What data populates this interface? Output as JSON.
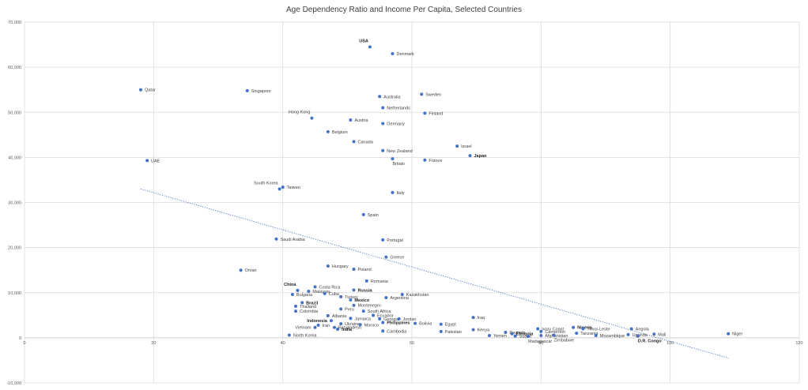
{
  "chart_data": {
    "type": "scatter",
    "title": "Age Dependency Ratio and Income Per Capita, Selected Countries",
    "xlabel": "",
    "ylabel": "",
    "xlim": [
      0,
      120
    ],
    "ylim": [
      -10000,
      70000
    ],
    "x_ticks": [
      "0",
      "20",
      "40",
      "60",
      "80",
      "100",
      "120"
    ],
    "y_ticks": [
      "-10,000",
      "0",
      "10,000",
      "20,000",
      "30,000",
      "40,000",
      "50,000",
      "60,000",
      "70,000"
    ],
    "grid": true,
    "legend": "none",
    "colors": {
      "marker": "#4472C4",
      "trendline": "#4472C4",
      "grid": "#d9d9d9",
      "axis": "#bfbfbf"
    },
    "trendline": {
      "type": "linear",
      "style": "dotted",
      "x": [
        18,
        109
      ],
      "y": [
        33000,
        -4500
      ]
    },
    "points": [
      {
        "name": "USA",
        "x": 53.5,
        "y": 64500,
        "bold": true
      },
      {
        "name": "Denmark",
        "x": 57,
        "y": 63000,
        "bold": false
      },
      {
        "name": "Qatar",
        "x": 18,
        "y": 55000,
        "bold": false
      },
      {
        "name": "Singapore",
        "x": 34.5,
        "y": 54800,
        "bold": false
      },
      {
        "name": "Sweden",
        "x": 61.5,
        "y": 54000,
        "bold": false
      },
      {
        "name": "Australia",
        "x": 55,
        "y": 53500,
        "bold": false
      },
      {
        "name": "Netherlands",
        "x": 55.5,
        "y": 51000,
        "bold": false
      },
      {
        "name": "Finland",
        "x": 62,
        "y": 49800,
        "bold": false
      },
      {
        "name": "Hong Kong",
        "x": 44.5,
        "y": 48700,
        "bold": false
      },
      {
        "name": "Austria",
        "x": 50.5,
        "y": 48300,
        "bold": false
      },
      {
        "name": "Germany",
        "x": 55.5,
        "y": 47500,
        "bold": false
      },
      {
        "name": "Belgium",
        "x": 47,
        "y": 45700,
        "bold": false
      },
      {
        "name": "Canada",
        "x": 51,
        "y": 43500,
        "bold": false
      },
      {
        "name": "Israel",
        "x": 67,
        "y": 42500,
        "bold": false
      },
      {
        "name": "New Zealand",
        "x": 55.5,
        "y": 41500,
        "bold": false
      },
      {
        "name": "Japan",
        "x": 69,
        "y": 40400,
        "bold": true
      },
      {
        "name": "Britain",
        "x": 57,
        "y": 39700,
        "bold": false
      },
      {
        "name": "France",
        "x": 62,
        "y": 39400,
        "bold": false
      },
      {
        "name": "UAE",
        "x": 19,
        "y": 39300,
        "bold": false
      },
      {
        "name": "South Korea",
        "x": 39.5,
        "y": 33000,
        "bold": false
      },
      {
        "name": "Taiwan",
        "x": 40,
        "y": 33400,
        "bold": false
      },
      {
        "name": "Italy",
        "x": 57,
        "y": 32200,
        "bold": false
      },
      {
        "name": "Spain",
        "x": 52.5,
        "y": 27300,
        "bold": false
      },
      {
        "name": "Saudi Arabia",
        "x": 39,
        "y": 21900,
        "bold": false
      },
      {
        "name": "Portugal",
        "x": 55.5,
        "y": 21700,
        "bold": false
      },
      {
        "name": "Greece",
        "x": 56,
        "y": 17900,
        "bold": false
      },
      {
        "name": "Hungary",
        "x": 47,
        "y": 15900,
        "bold": false
      },
      {
        "name": "Oman",
        "x": 33.5,
        "y": 15000,
        "bold": false
      },
      {
        "name": "Poland",
        "x": 51,
        "y": 15200,
        "bold": false
      },
      {
        "name": "Romania",
        "x": 53,
        "y": 12600,
        "bold": false
      },
      {
        "name": "China",
        "x": 42.3,
        "y": 10500,
        "bold": true
      },
      {
        "name": "Costa Rica",
        "x": 45,
        "y": 11300,
        "bold": false
      },
      {
        "name": "Malaysia",
        "x": 44,
        "y": 10300,
        "bold": false
      },
      {
        "name": "Russia",
        "x": 51,
        "y": 10600,
        "bold": true
      },
      {
        "name": "Bulgaria",
        "x": 41.5,
        "y": 9600,
        "bold": false
      },
      {
        "name": "Cuba",
        "x": 46.5,
        "y": 9800,
        "bold": false
      },
      {
        "name": "Kazakhstan",
        "x": 58.5,
        "y": 9600,
        "bold": false
      },
      {
        "name": "Turkey",
        "x": 49,
        "y": 9100,
        "bold": false
      },
      {
        "name": "Argentina",
        "x": 56,
        "y": 8900,
        "bold": false
      },
      {
        "name": "Mexico",
        "x": 50.5,
        "y": 8400,
        "bold": true
      },
      {
        "name": "Brazil",
        "x": 43,
        "y": 7800,
        "bold": true
      },
      {
        "name": "Montenegro",
        "x": 51,
        "y": 7200,
        "bold": false
      },
      {
        "name": "Thailand",
        "x": 42,
        "y": 7000,
        "bold": false
      },
      {
        "name": "Peru",
        "x": 49,
        "y": 6400,
        "bold": false
      },
      {
        "name": "Colombia",
        "x": 42,
        "y": 5900,
        "bold": false
      },
      {
        "name": "South Africa",
        "x": 52.5,
        "y": 5900,
        "bold": false
      },
      {
        "name": "Albania",
        "x": 47,
        "y": 4900,
        "bold": false
      },
      {
        "name": "Ecuador",
        "x": 54,
        "y": 5000,
        "bold": false
      },
      {
        "name": "Jamaica",
        "x": 50.5,
        "y": 4300,
        "bold": false
      },
      {
        "name": "Iraq",
        "x": 69.5,
        "y": 4500,
        "bold": false
      },
      {
        "name": "Indonesia",
        "x": 47.5,
        "y": 3800,
        "bold": true
      },
      {
        "name": "Georgia",
        "x": 55,
        "y": 4200,
        "bold": false
      },
      {
        "name": "Jordan",
        "x": 58,
        "y": 4200,
        "bold": false
      },
      {
        "name": "Ukraine",
        "x": 49,
        "y": 3100,
        "bold": false
      },
      {
        "name": "Philippines",
        "x": 55.5,
        "y": 3400,
        "bold": true
      },
      {
        "name": "Bolivia",
        "x": 60.5,
        "y": 3200,
        "bold": false
      },
      {
        "name": "Egypt",
        "x": 64.5,
        "y": 3000,
        "bold": false
      },
      {
        "name": "Iran",
        "x": 45.5,
        "y": 2800,
        "bold": false
      },
      {
        "name": "Bangladesh",
        "x": 48,
        "y": 2300,
        "bold": false
      },
      {
        "name": "Moroco",
        "x": 52,
        "y": 2900,
        "bold": false
      },
      {
        "name": "Vietnam",
        "x": 45,
        "y": 2300,
        "bold": false
      },
      {
        "name": "India",
        "x": 48.5,
        "y": 1900,
        "bold": true
      },
      {
        "name": "Cambodia",
        "x": 55.5,
        "y": 1500,
        "bold": false
      },
      {
        "name": "Kenya",
        "x": 69.5,
        "y": 1800,
        "bold": false
      },
      {
        "name": "Pakistan",
        "x": 64.5,
        "y": 1400,
        "bold": false
      },
      {
        "name": "Nigeria",
        "x": 85,
        "y": 2300,
        "bold": true
      },
      {
        "name": "Ivory Coast",
        "x": 79.5,
        "y": 2000,
        "bold": false
      },
      {
        "name": "Timor-Leste",
        "x": 86.5,
        "y": 2000,
        "bold": false
      },
      {
        "name": "Angola",
        "x": 94,
        "y": 2000,
        "bold": false
      },
      {
        "name": "Rwanda",
        "x": 74.5,
        "y": 1200,
        "bold": false
      },
      {
        "name": "Ethiopia",
        "x": 75.5,
        "y": 900,
        "bold": true
      },
      {
        "name": "Cameroon",
        "x": 80,
        "y": 1400,
        "bold": false
      },
      {
        "name": "Tanzania",
        "x": 85.5,
        "y": 1000,
        "bold": false
      },
      {
        "name": "Uganda",
        "x": 93.5,
        "y": 700,
        "bold": false
      },
      {
        "name": "Mali",
        "x": 97.5,
        "y": 800,
        "bold": false
      },
      {
        "name": "Niger",
        "x": 109,
        "y": 900,
        "bold": false
      },
      {
        "name": "Yemen",
        "x": 72,
        "y": 500,
        "bold": false
      },
      {
        "name": "Sudan",
        "x": 76,
        "y": 400,
        "bold": false
      },
      {
        "name": "Afghanistan",
        "x": 80,
        "y": 500,
        "bold": false
      },
      {
        "name": "Mozambique",
        "x": 88.5,
        "y": 500,
        "bold": false
      },
      {
        "name": "North Korea",
        "x": 41,
        "y": 600,
        "bold": false
      },
      {
        "name": "Madagascar",
        "x": 78,
        "y": 300,
        "bold": false
      },
      {
        "name": "Zimbabwe",
        "x": 82,
        "y": 600,
        "bold": false
      },
      {
        "name": "D.R. Congo",
        "x": 95,
        "y": 400,
        "bold": true
      }
    ]
  }
}
